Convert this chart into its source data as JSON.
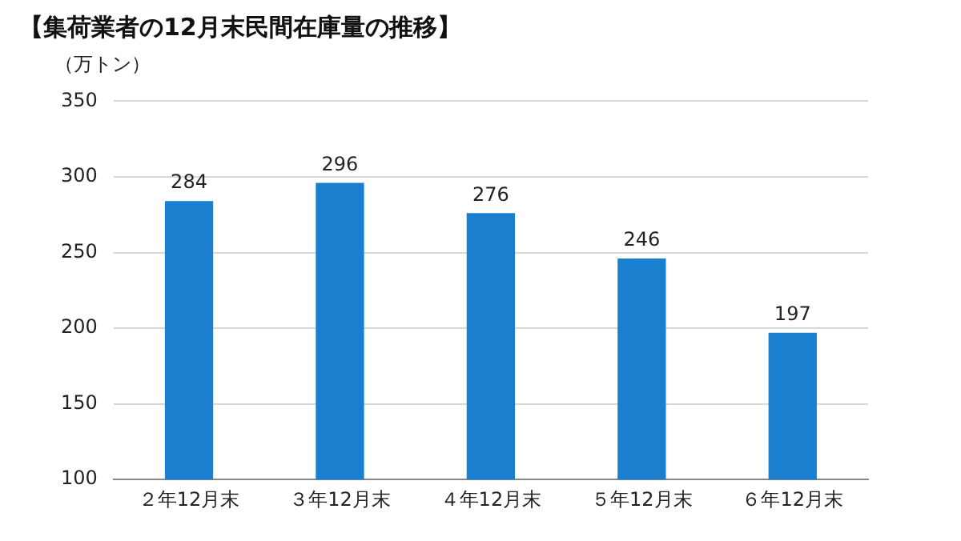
{
  "chart_data": {
    "type": "bar",
    "title": "【集荷業者の12月末民間在庫量の推移】",
    "ylabel": "（万トン）",
    "categories": [
      "２年12月末",
      "３年12月末",
      "４年12月末",
      "５年12月末",
      "６年12月末"
    ],
    "values": [
      284,
      296,
      276,
      246,
      197
    ],
    "color": "#1a7fcf",
    "ylim": [
      100,
      350
    ],
    "yticks": [
      100,
      150,
      200,
      250,
      300,
      350
    ],
    "grid": "y",
    "data_labels": true,
    "legend": false
  }
}
